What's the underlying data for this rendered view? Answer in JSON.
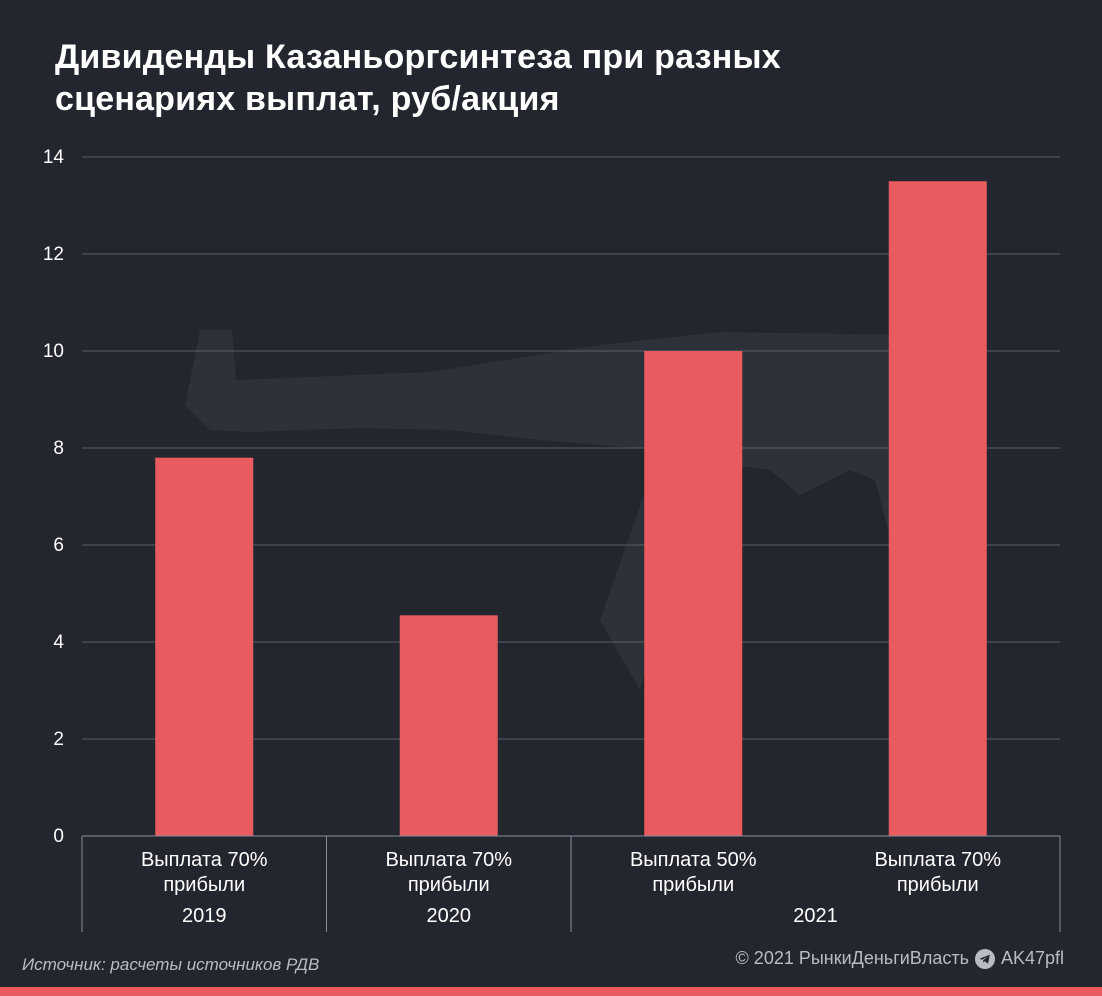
{
  "title_line1": "Дивиденды Казаньоргсинтеза при разных",
  "title_line2": "сценариях выплат, руб/акция",
  "source": "Источник: расчеты источников РДВ",
  "copyright": "© 2021  РынкиДеньгиВласть",
  "telegram_handle": "AK47pfl",
  "colors": {
    "background": "#23262f",
    "bar": "#e95b5f",
    "grid": "#5a5e69",
    "text": "#ffffff",
    "muted": "#b9bcc4"
  },
  "chart_data": {
    "type": "bar",
    "title": "Дивиденды Казаньоргсинтеза при разных сценариях выплат, руб/акция",
    "categories": [
      "Выплата 70% прибыли",
      "Выплата 70% прибыли",
      "Выплата 50% прибыли",
      "Выплата 70% прибыли"
    ],
    "category_lines": [
      [
        "Выплата 70%",
        "прибыли"
      ],
      [
        "Выплата 70%",
        "прибыли"
      ],
      [
        "Выплата 50%",
        "прибыли"
      ],
      [
        "Выплата 70%",
        "прибыли"
      ]
    ],
    "groups": [
      {
        "label": "2019",
        "span": 1
      },
      {
        "label": "2020",
        "span": 1
      },
      {
        "label": "2021",
        "span": 2
      }
    ],
    "values": [
      7.8,
      4.55,
      10.0,
      13.5
    ],
    "ylim": [
      0,
      14
    ],
    "yticks": [
      0,
      2,
      4,
      6,
      8,
      10,
      12,
      14
    ],
    "grid": true,
    "xlabel": "",
    "ylabel": ""
  }
}
